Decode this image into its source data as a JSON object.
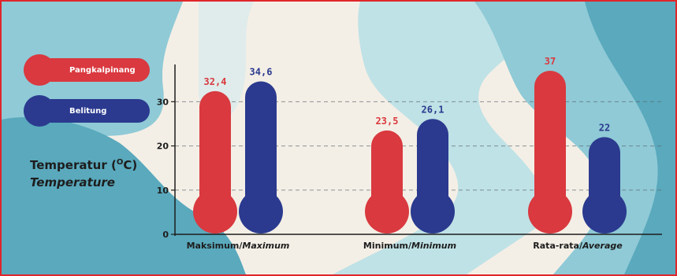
{
  "chart_data": {
    "type": "bar",
    "ylabel_id_prefix": "Temperatur (",
    "ylabel_unit_sup": "O",
    "ylabel_unit_suffix": "C)",
    "ylabel_en": "Temperature",
    "ylim": [
      0,
      37
    ],
    "yticks": [
      0,
      10,
      20,
      30
    ],
    "grid": true,
    "legend_position": "top-left",
    "categories": [
      {
        "id": "Maksimum/",
        "en": "Maximum"
      },
      {
        "id": "Minimum/",
        "en": "Minimum"
      },
      {
        "id": "Rata-rata/",
        "en": "Average"
      }
    ],
    "series": [
      {
        "name": "Pangkalpinang",
        "color": "#d9393f",
        "values": [
          32.4,
          23.5,
          37
        ],
        "labels": [
          "32,4",
          "23,5",
          "37"
        ]
      },
      {
        "name": "Belitung",
        "color": "#2b3a8f",
        "values": [
          34.6,
          26.1,
          22
        ],
        "labels": [
          "34,6",
          "26,1",
          "22"
        ]
      }
    ]
  }
}
